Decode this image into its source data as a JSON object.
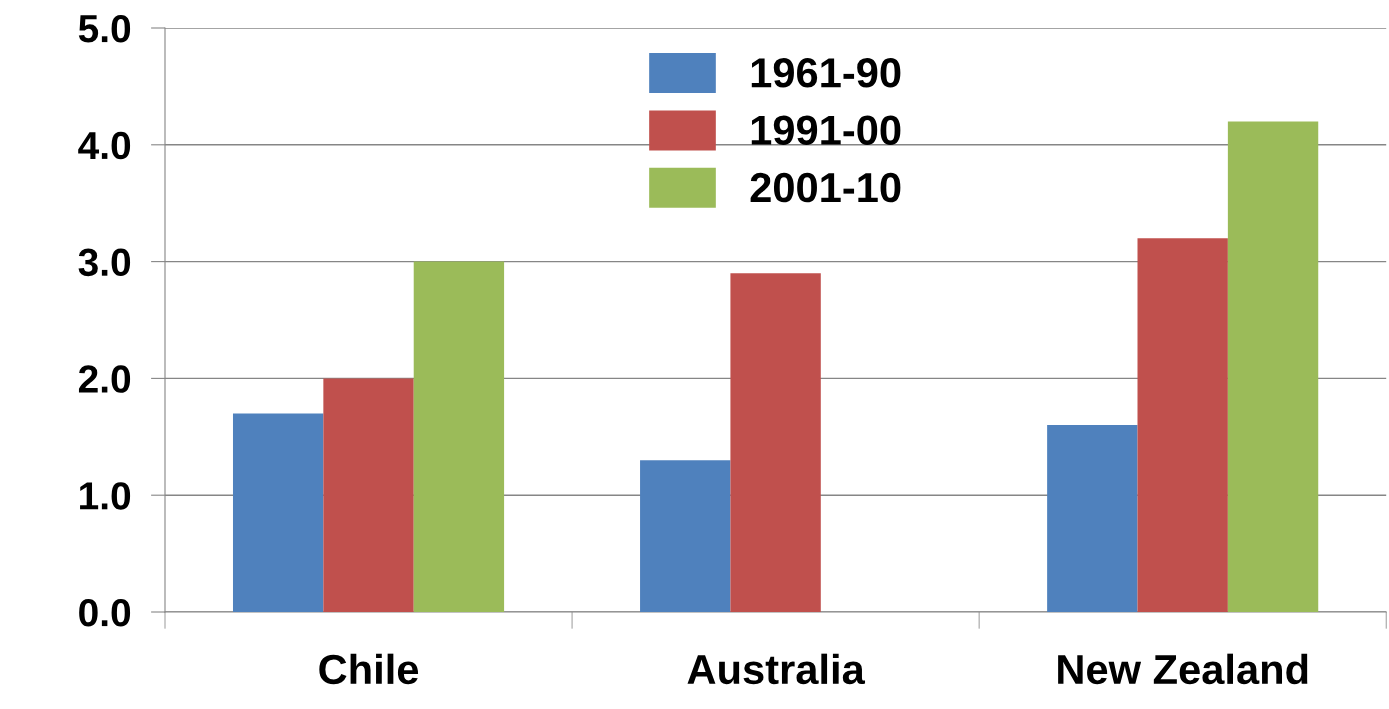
{
  "chart_data": {
    "type": "bar",
    "categories": [
      "Chile",
      "Australia",
      "New Zealand"
    ],
    "series": [
      {
        "name": "1961-90",
        "color": "#4f81bd",
        "values": [
          1.7,
          1.3,
          1.6
        ]
      },
      {
        "name": "1991-00",
        "color": "#c0504d",
        "values": [
          2.0,
          2.9,
          3.2
        ]
      },
      {
        "name": "2001-10",
        "color": "#9bbb59",
        "values": [
          3.0,
          null,
          4.2
        ]
      }
    ],
    "ylim": [
      0,
      5
    ],
    "yticks": [
      {
        "value": 0,
        "label": "0.0"
      },
      {
        "value": 1,
        "label": "1.0"
      },
      {
        "value": 2,
        "label": "2.0"
      },
      {
        "value": 3,
        "label": "3.0"
      },
      {
        "value": 4,
        "label": "4.0"
      },
      {
        "value": 5,
        "label": "5.0"
      }
    ],
    "grid": "y",
    "legend": "top"
  }
}
